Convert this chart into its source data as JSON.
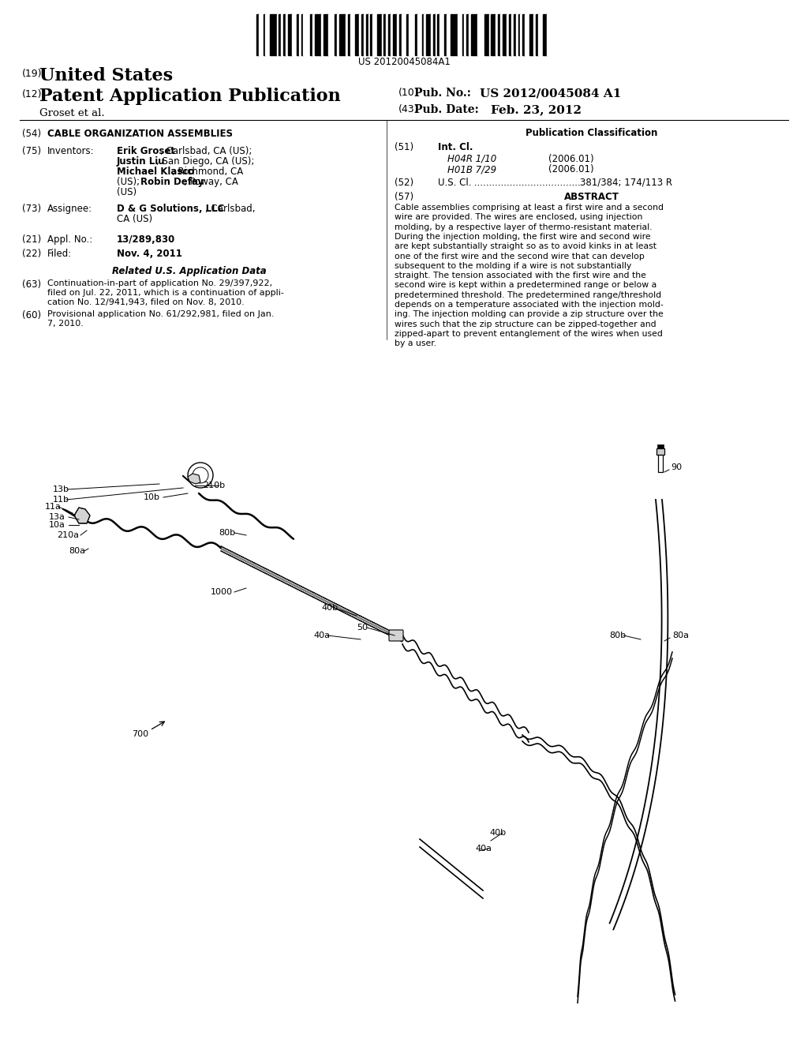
{
  "background_color": "#ffffff",
  "barcode_text": "US 20120045084A1",
  "header": {
    "tag19": "(19)",
    "united_states": "United States",
    "tag12": "(12)",
    "patent_app_pub": "Patent Application Publication",
    "tag10": "(10)",
    "pub_no_label": "Pub. No.:",
    "pub_no_value": "US 2012/0045084 A1",
    "groset": "Groset et al.",
    "tag43": "(43)",
    "pub_date_label": "Pub. Date:",
    "pub_date_value": "Feb. 23, 2012"
  },
  "left_col": {
    "tag54": "(54)",
    "title": "CABLE ORGANIZATION ASSEMBLIES",
    "tag75": "(75)",
    "inventors_label": "Inventors:",
    "tag73": "(73)",
    "assignee_label": "Assignee:",
    "tag21": "(21)",
    "appl_no_label": "Appl. No.:",
    "appl_no_value": "13/289,830",
    "tag22": "(22)",
    "filed_label": "Filed:",
    "filed_value": "Nov. 4, 2011",
    "related_title": "Related U.S. Application Data",
    "tag63": "(63)",
    "cont_line1": "Continuation-in-part of application No. 29/397,922,",
    "cont_line2": "filed on Jul. 22, 2011, which is a continuation of appli-",
    "cont_line3": "cation No. 12/941,943, filed on Nov. 8, 2010.",
    "tag60": "(60)",
    "prov_line1": "Provisional application No. 61/292,981, filed on Jan.",
    "prov_line2": "7, 2010."
  },
  "right_col": {
    "pub_class_title": "Publication Classification",
    "tag51": "(51)",
    "int_cl_label": "Int. Cl.",
    "int_cl_1_code": "H04R 1/10",
    "int_cl_1_year": "(2006.01)",
    "int_cl_2_code": "H01B 7/29",
    "int_cl_2_year": "(2006.01)",
    "tag52": "(52)",
    "us_cl_value": "381/384; 174/113 R",
    "tag57": "(57)",
    "abstract_title": "ABSTRACT",
    "abstract_lines": [
      "Cable assemblies comprising at least a first wire and a second",
      "wire are provided. The wires are enclosed, using injection",
      "molding, by a respective layer of thermo-resistant material.",
      "During the injection molding, the first wire and second wire",
      "are kept substantially straight so as to avoid kinks in at least",
      "one of the first wire and the second wire that can develop",
      "subsequent to the molding if a wire is not substantially",
      "straight. The tension associated with the first wire and the",
      "second wire is kept within a predetermined range or below a",
      "predetermined threshold. The predetermined range/threshold",
      "depends on a temperature associated with the injection mold-",
      "ing. The injection molding can provide a zip structure over the",
      "wires such that the zip structure can be zipped-together and",
      "zipped-apart to prevent entanglement of the wires when used",
      "by a user."
    ]
  }
}
